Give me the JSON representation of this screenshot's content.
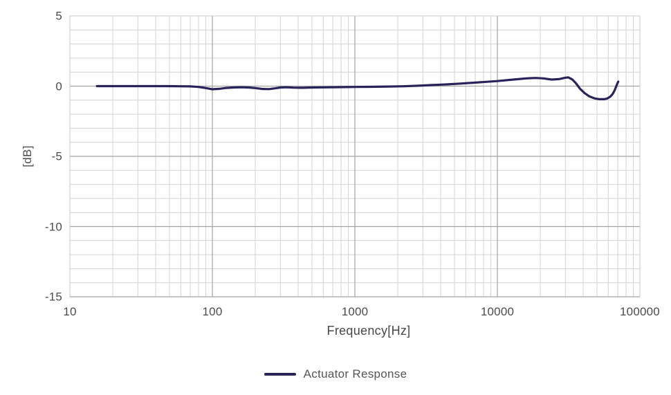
{
  "chart_data": {
    "type": "line",
    "title": "",
    "xlabel": "Frequency[Hz]",
    "ylabel": "[dB]",
    "x_scale": "log",
    "xlim": [
      10,
      100000
    ],
    "ylim": [
      -15,
      5
    ],
    "x_ticks": {
      "values": [
        10,
        100,
        1000,
        10000,
        100000
      ],
      "labels": [
        "10",
        "100",
        "1000",
        "10000",
        "100000"
      ]
    },
    "y_ticks": {
      "values": [
        5,
        0,
        -5,
        -10,
        -15
      ],
      "labels": [
        "5",
        "0",
        "-5",
        "-10",
        "-15"
      ]
    },
    "y_minor_step": 1,
    "grid": "major+minor, log minor verticals",
    "legend": {
      "position": "bottom-center",
      "entries": [
        {
          "label": "Actuator Response",
          "color": "#28235a"
        }
      ]
    },
    "series": [
      {
        "name": "Actuator Response",
        "color": "#28235a",
        "stroke_width": 3.2,
        "points": [
          [
            15.5,
            0
          ],
          [
            18,
            0
          ],
          [
            22,
            0
          ],
          [
            27,
            0
          ],
          [
            33,
            0
          ],
          [
            40,
            0
          ],
          [
            48,
            0
          ],
          [
            58,
            -0.01
          ],
          [
            70,
            -0.02
          ],
          [
            80,
            -0.06
          ],
          [
            90,
            -0.14
          ],
          [
            100,
            -0.22
          ],
          [
            112,
            -0.19
          ],
          [
            125,
            -0.13
          ],
          [
            140,
            -0.1
          ],
          [
            160,
            -0.08
          ],
          [
            180,
            -0.1
          ],
          [
            200,
            -0.14
          ],
          [
            225,
            -0.2
          ],
          [
            250,
            -0.21
          ],
          [
            275,
            -0.16
          ],
          [
            300,
            -0.1
          ],
          [
            330,
            -0.08
          ],
          [
            370,
            -0.11
          ],
          [
            430,
            -0.12
          ],
          [
            500,
            -0.1
          ],
          [
            600,
            -0.09
          ],
          [
            700,
            -0.08
          ],
          [
            850,
            -0.07
          ],
          [
            1000,
            -0.06
          ],
          [
            1300,
            -0.05
          ],
          [
            1700,
            -0.03
          ],
          [
            2200,
            -0.01
          ],
          [
            2800,
            0.03
          ],
          [
            3500,
            0.08
          ],
          [
            4500,
            0.13
          ],
          [
            5500,
            0.18
          ],
          [
            7000,
            0.25
          ],
          [
            8500,
            0.31
          ],
          [
            10000,
            0.36
          ],
          [
            12000,
            0.44
          ],
          [
            14000,
            0.5
          ],
          [
            16000,
            0.55
          ],
          [
            18500,
            0.58
          ],
          [
            21000,
            0.55
          ],
          [
            24000,
            0.47
          ],
          [
            27000,
            0.5
          ],
          [
            30000,
            0.6
          ],
          [
            31500,
            0.62
          ],
          [
            33500,
            0.48
          ],
          [
            35500,
            0.22
          ],
          [
            38000,
            -0.18
          ],
          [
            41000,
            -0.5
          ],
          [
            44000,
            -0.72
          ],
          [
            48000,
            -0.87
          ],
          [
            52000,
            -0.93
          ],
          [
            56000,
            -0.93
          ],
          [
            59000,
            -0.88
          ],
          [
            62000,
            -0.75
          ],
          [
            64500,
            -0.55
          ],
          [
            66500,
            -0.3
          ],
          [
            68200,
            -0.02
          ],
          [
            69500,
            0.18
          ],
          [
            70500,
            0.32
          ]
        ]
      }
    ]
  },
  "colors": {
    "background": "#ffffff",
    "grid_minor": "#d2d2d2",
    "grid_major": "#a2a2a2",
    "plot_border": "#c9c9c9",
    "tick_text": "#4c4c4c",
    "line": "#28235a"
  }
}
